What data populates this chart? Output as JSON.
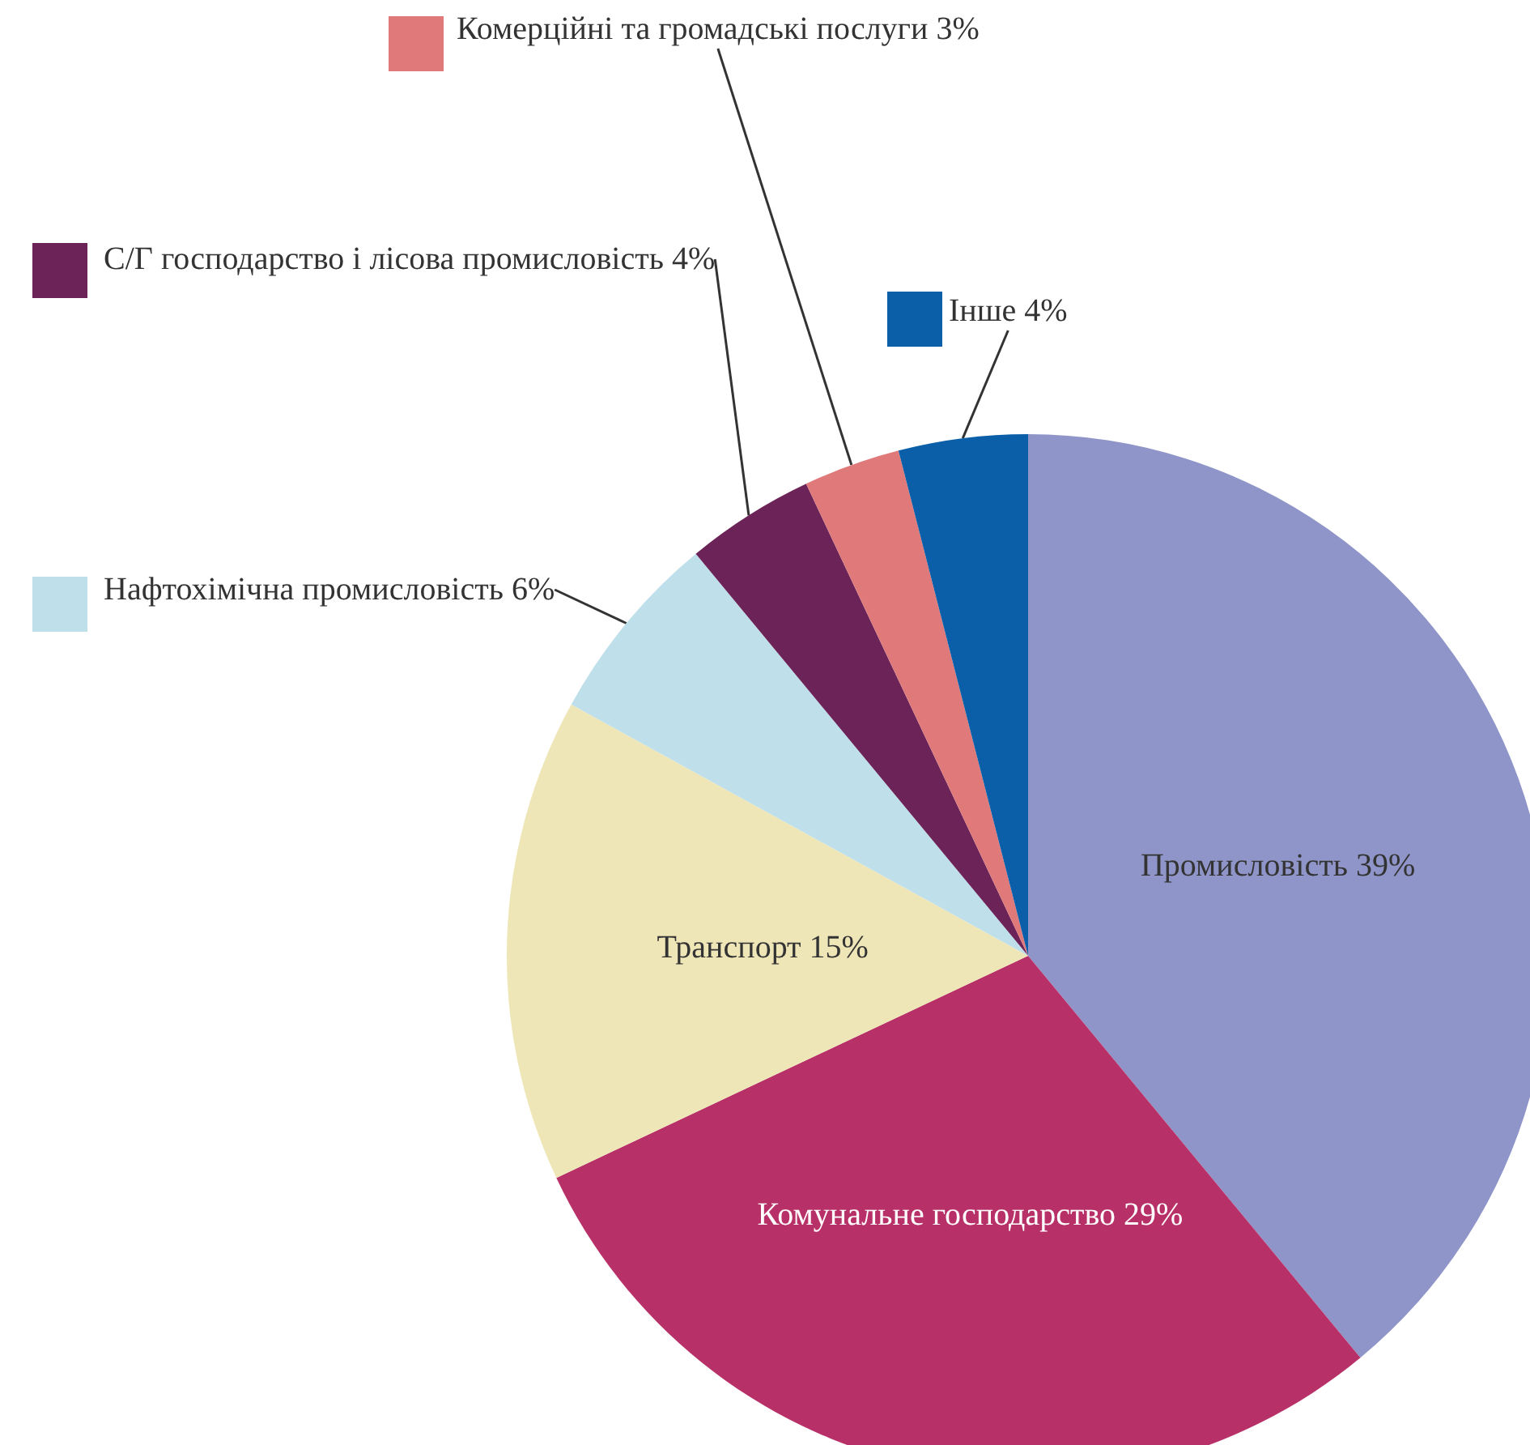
{
  "chart_data": {
    "type": "pie",
    "categories": [
      "Промисловість",
      "Комунальне господарство",
      "Транспорт",
      "Нафтохімічна промисловість",
      "С/Г господарство і лісова промисловість",
      "Комерційні та громадські послуги",
      "Інше"
    ],
    "values": [
      39,
      29,
      15,
      6,
      4,
      3,
      4
    ],
    "value_labels": [
      "39%",
      "29%",
      "15%",
      "6%",
      "4%",
      "3%",
      "4%"
    ],
    "colors": [
      "#8f95c8",
      "#b83068",
      "#efe6b8",
      "#bfe0ea",
      "#6b2358",
      "#e07a7a",
      "#0a5fa8"
    ],
    "legend": "top left"
  }
}
